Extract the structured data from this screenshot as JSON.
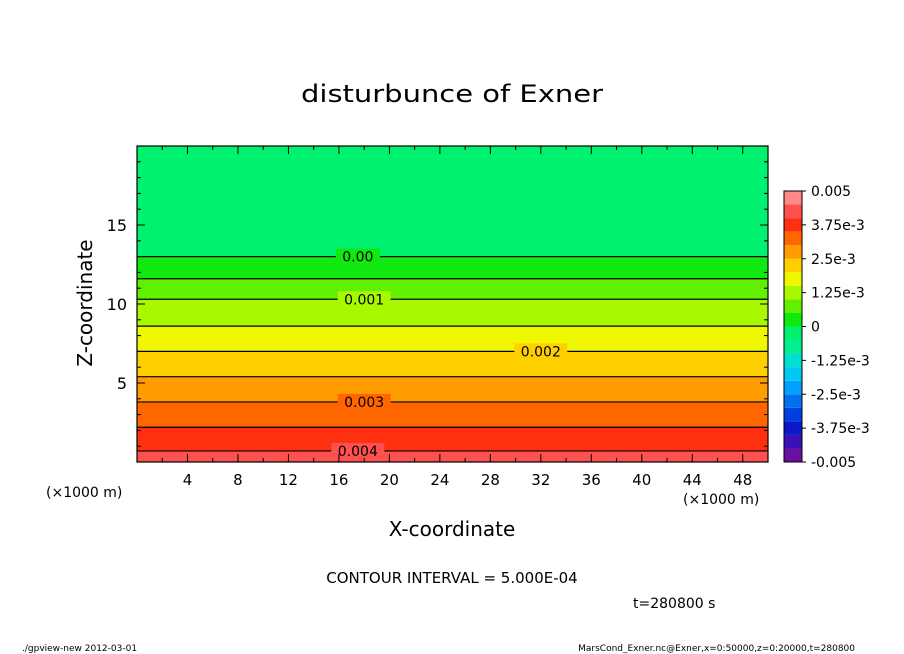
{
  "chart_data": {
    "type": "heatmap",
    "title": "disturbunce of Exner",
    "xlabel": "X-coordinate",
    "ylabel": "Z-coordinate",
    "x_unit": "(×1000 m)",
    "y_unit": "(×1000 m)",
    "x_right_unit": "(×1000 m)",
    "xlim": [
      0,
      50
    ],
    "ylim": [
      0,
      20
    ],
    "x_ticks": [
      4,
      8,
      12,
      16,
      20,
      24,
      28,
      32,
      36,
      40,
      44,
      48
    ],
    "y_ticks": [
      5,
      10,
      15
    ],
    "colorbar": {
      "ticks": [
        "0.005",
        "3.75e-3",
        "2.5e-3",
        "1.25e-3",
        "0",
        "-1.25e-3",
        "-2.5e-3",
        "-3.75e-3",
        "-0.005"
      ],
      "range": [
        -0.005,
        0.005
      ]
    },
    "contour_labels": [
      {
        "text": "0.00",
        "z": 13.0,
        "x": 17.5
      },
      {
        "text": "0.001",
        "z": 10.3,
        "x": 18.0
      },
      {
        "text": "0.002",
        "z": 7.0,
        "x": 32.0
      },
      {
        "text": "0.003",
        "z": 3.8,
        "x": 18.0
      },
      {
        "text": "0.004",
        "z": 0.7,
        "x": 17.5
      }
    ],
    "contour_levels": [
      0.0,
      0.0005,
      0.001,
      0.0015,
      0.002,
      0.0025,
      0.003,
      0.0035,
      0.004
    ],
    "contour_levels_z": [
      13.0,
      11.6,
      10.3,
      8.6,
      7.0,
      5.4,
      3.8,
      2.2,
      0.7
    ],
    "field_by_z": [
      {
        "z": 0,
        "value": 0.0042
      },
      {
        "z": 0.7,
        "value": 0.004
      },
      {
        "z": 2.2,
        "value": 0.0035
      },
      {
        "z": 3.8,
        "value": 0.003
      },
      {
        "z": 5.4,
        "value": 0.0025
      },
      {
        "z": 7.0,
        "value": 0.002
      },
      {
        "z": 8.6,
        "value": 0.0015
      },
      {
        "z": 10.3,
        "value": 0.001
      },
      {
        "z": 11.6,
        "value": 0.0005
      },
      {
        "z": 13.0,
        "value": 0.0
      },
      {
        "z": 20,
        "value": -0.0002
      }
    ],
    "interval_text": "CONTOUR INTERVAL = 5.000E-04",
    "time_text": "t=280800  s",
    "footer_left": "./gpview-new   2012-03-01",
    "footer_right": "MarsCond_Exner.nc@Exner,x=0:50000,z=0:20000,t=280800"
  }
}
